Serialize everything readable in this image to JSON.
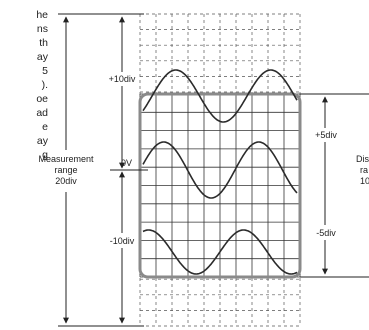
{
  "paragraph_fragment": {
    "lines": [
      "he",
      "ns",
      "th",
      "ay",
      "5",
      ").",
      "oe",
      "ad",
      "e",
      "ay",
      "g"
    ]
  },
  "labels": {
    "measurement_range": [
      "Measurement",
      "range",
      "20div"
    ],
    "display_range": [
      "Dis",
      "ra",
      "10"
    ],
    "plus10": "+10div",
    "minus10": "-10div",
    "zero": "0V",
    "plus5": "+5div",
    "minus5": "-5div"
  },
  "colors": {
    "ink": "#222222",
    "waveform": "#2b2b2b",
    "screen_frame": "#8a8a8a",
    "dashed_grid": "#555555"
  }
}
